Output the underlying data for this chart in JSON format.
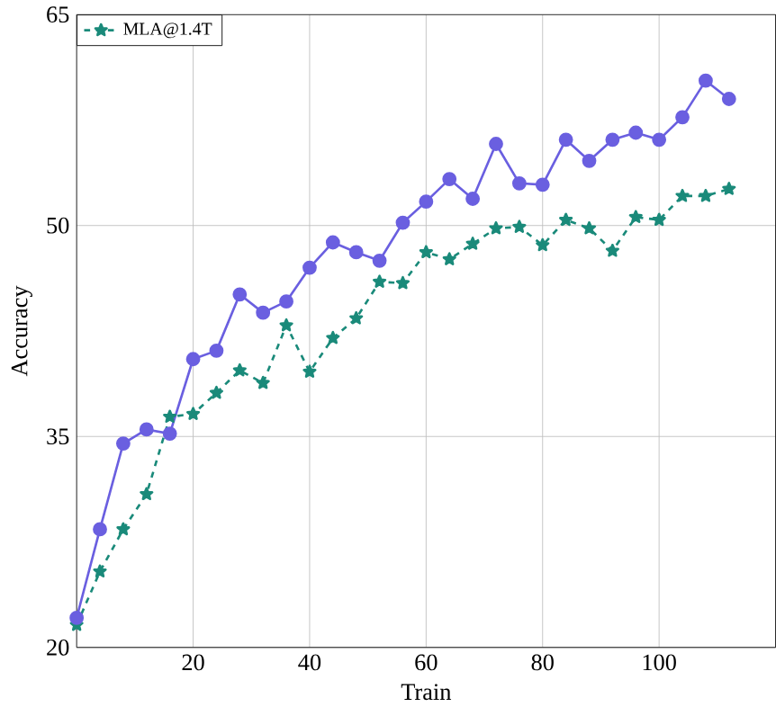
{
  "chart_data": {
    "type": "line",
    "xlabel": "Train",
    "ylabel": "Accuracy",
    "x": [
      0,
      4,
      8,
      12,
      16,
      20,
      24,
      28,
      32,
      36,
      40,
      44,
      48,
      52,
      56,
      60,
      64,
      68,
      72,
      76,
      80,
      84,
      88,
      92,
      96,
      100,
      104,
      108,
      112
    ],
    "series": [
      {
        "name": "MLA@1.4T",
        "color": "#1a8a7a",
        "marker": "star",
        "line_style": "dashed",
        "values": [
          21.6,
          25.4,
          28.4,
          30.9,
          36.4,
          36.6,
          38.1,
          39.7,
          38.8,
          42.9,
          39.6,
          42.0,
          43.4,
          46.0,
          45.9,
          48.1,
          47.6,
          48.7,
          49.8,
          49.9,
          48.6,
          50.4,
          49.8,
          48.2,
          50.6,
          50.4,
          52.1,
          52.1,
          52.6
        ]
      },
      {
        "color": "#6a5fe0",
        "marker": "circle",
        "line_style": "solid",
        "values": [
          22.1,
          28.4,
          34.5,
          35.5,
          35.2,
          40.5,
          41.1,
          45.1,
          43.8,
          44.6,
          47.0,
          48.8,
          48.1,
          47.5,
          50.2,
          51.7,
          53.3,
          51.9,
          55.8,
          53.0,
          52.9,
          56.1,
          54.6,
          56.1,
          56.6,
          56.1,
          57.7,
          60.3,
          59.0
        ]
      }
    ],
    "xlim": [
      0,
      120
    ],
    "ylim": [
      20,
      65
    ],
    "xticks": [
      20,
      40,
      60,
      80,
      100
    ],
    "yticks": [
      20,
      35,
      50,
      65
    ],
    "grid": true,
    "legend": "top left"
  }
}
